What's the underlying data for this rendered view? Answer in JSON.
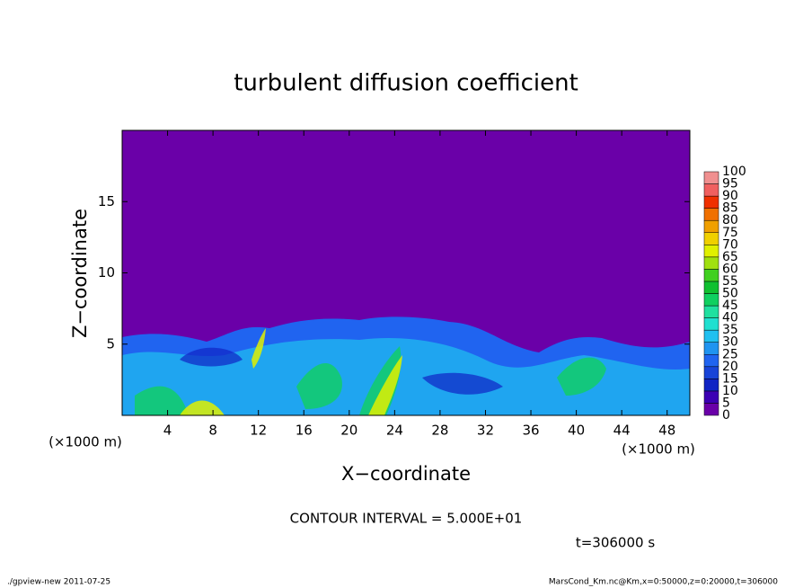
{
  "chart_data": {
    "type": "contour",
    "title": "turbulent diffusion coefficient",
    "x_label": "X−coordinate",
    "y_label": "Z−coordinate",
    "x_unit_label": "(×1000 m)",
    "xlim": [
      0,
      50
    ],
    "xticks": [
      4,
      8,
      12,
      16,
      20,
      24,
      28,
      32,
      36,
      40,
      44,
      48
    ],
    "ylim": [
      0,
      20
    ],
    "yticks": [
      5,
      10,
      15
    ],
    "contour_interval": "CONTOUR INTERVAL = 5.000E+01",
    "time_label": "t=306000 s",
    "footer_left": "./gpview-new   2011-07-25",
    "footer_right": "MarsCond_Km.nc@Km,x=0:50000,z=0:20000,t=306000",
    "colorbar": {
      "levels": [
        0,
        5,
        10,
        15,
        20,
        25,
        30,
        35,
        40,
        45,
        50,
        55,
        60,
        65,
        70,
        75,
        80,
        85,
        90,
        95,
        100
      ],
      "colors": [
        "#6a00a8",
        "#3c00b4",
        "#1024c4",
        "#1844d8",
        "#2064f0",
        "#2094f0",
        "#20c0f0",
        "#20e0d0",
        "#20e0a0",
        "#10d060",
        "#10c030",
        "#40d020",
        "#a0e010",
        "#e0f000",
        "#f0d000",
        "#f0a000",
        "#f07000",
        "#f03000",
        "#f06060",
        "#f09090"
      ]
    }
  }
}
